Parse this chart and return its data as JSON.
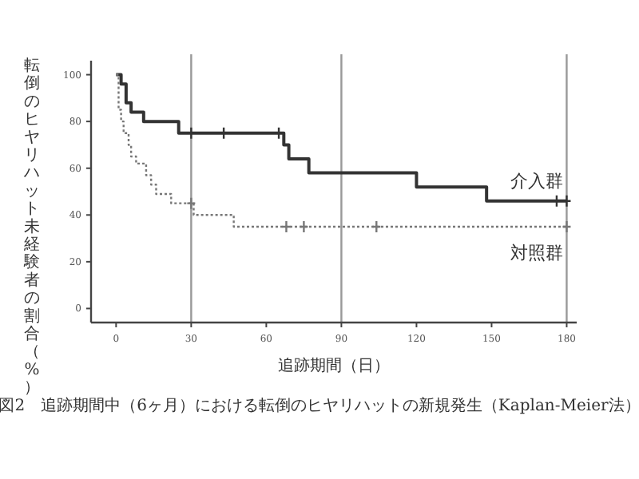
{
  "chart_data": {
    "type": "step",
    "xlabel": "追跡期間（日）",
    "ylabel": "転倒のヒヤリハット未経験者の割合（%）",
    "annotations": [
      "図2　追跡期間中（6ヶ月）における転倒のヒヤリハットの新規発生（Kaplan-Meier法）"
    ],
    "xlim": [
      -10,
      184
    ],
    "ylim": [
      -6,
      106
    ],
    "xticks": [
      0,
      30,
      60,
      90,
      120,
      150,
      180
    ],
    "yticks": [
      0,
      20,
      40,
      60,
      80,
      100
    ],
    "grid": false,
    "ref_lines": [
      {
        "axis": "x",
        "value": 30,
        "color": "#999999"
      },
      {
        "axis": "x",
        "value": 90,
        "color": "#999999"
      },
      {
        "axis": "x",
        "value": 180,
        "color": "#999999"
      }
    ],
    "series": [
      {
        "name": "介入群",
        "color": "#333333",
        "line_style": "solid",
        "x": [
          0,
          2,
          4,
          6,
          11,
          25,
          67,
          69,
          77,
          120,
          148,
          180
        ],
        "values": [
          100,
          96,
          88,
          84,
          80,
          75,
          70,
          64,
          58,
          52,
          46,
          46
        ]
      },
      {
        "name": "対照群",
        "color": "#777777",
        "line_style": "dotted",
        "x": [
          0,
          1,
          2,
          3,
          5,
          6,
          8,
          12,
          14,
          16,
          22,
          31,
          47,
          180
        ],
        "values": [
          100,
          85,
          80,
          75,
          70,
          65,
          62,
          57,
          53,
          49,
          45,
          40,
          35,
          35
        ]
      },
      {
        "type": "scatter",
        "marker": "cross",
        "color": "#333333",
        "x": [
          30,
          43,
          65,
          176,
          180
        ],
        "values": [
          75,
          75,
          75,
          46,
          46
        ]
      },
      {
        "type": "scatter",
        "marker": "cross",
        "color": "#777777",
        "x": [
          30,
          68,
          75,
          104,
          180
        ],
        "values": [
          45,
          35,
          35,
          35,
          35
        ]
      }
    ]
  }
}
